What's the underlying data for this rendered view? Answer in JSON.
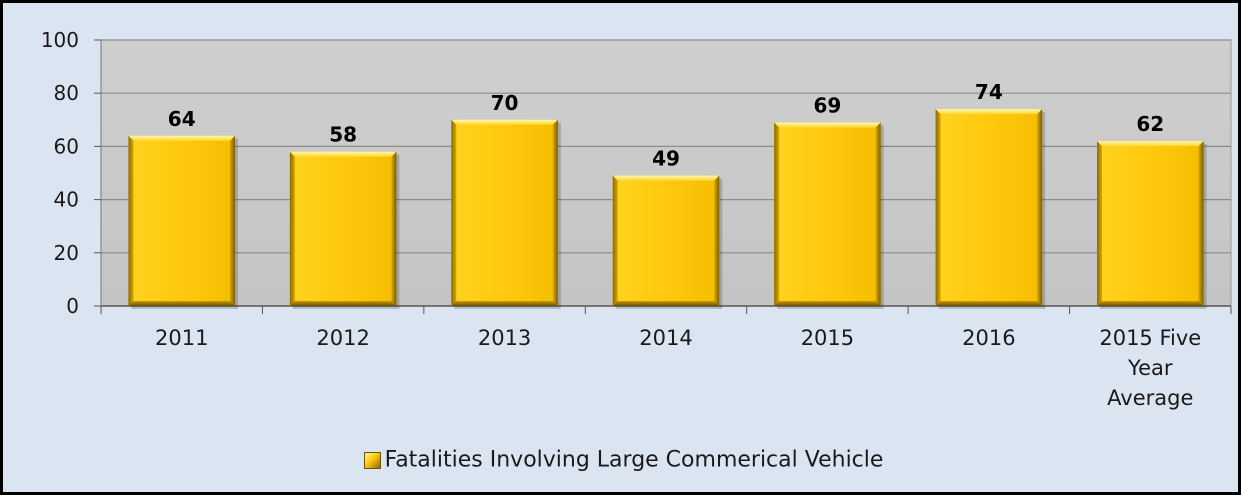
{
  "chart_data": {
    "type": "bar",
    "categories": [
      "2011",
      "2012",
      "2013",
      "2014",
      "2015",
      "2016",
      "2015 Five Year Average"
    ],
    "series": [
      {
        "name": "Fatalities Involving Large Commerical Vehicle",
        "values": [
          64,
          58,
          70,
          49,
          69,
          74,
          62
        ]
      }
    ],
    "ylim": [
      0,
      100
    ],
    "yticks": [
      0,
      20,
      40,
      60,
      80,
      100
    ],
    "grid": true,
    "legend": "bottom",
    "data_labels": true,
    "colors": {
      "bar_fill": "#ffc90e",
      "plot_background": "#c9c9c9",
      "chart_background": "#dbe5f1",
      "gridline": "#8c8c8c",
      "border": "#000000"
    }
  }
}
